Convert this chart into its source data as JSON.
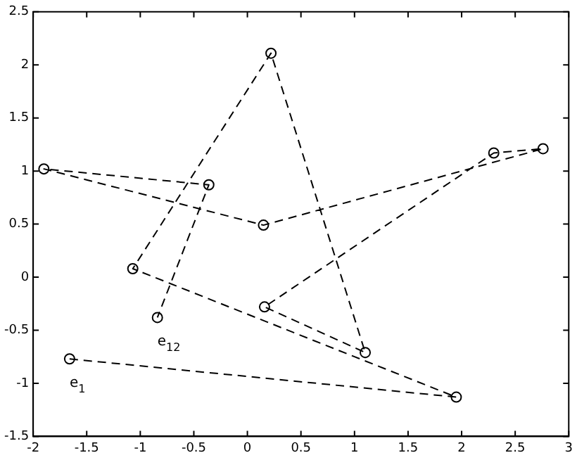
{
  "chart_data": {
    "type": "line",
    "marker": "circle",
    "line_style": "dashed",
    "grid": false,
    "legend": false,
    "xlim": [
      -2,
      3
    ],
    "xticks": [
      -2,
      -1.5,
      -1,
      -0.5,
      0,
      0.5,
      1,
      1.5,
      2,
      2.5,
      3
    ],
    "ylim": [
      -1.5,
      2.5
    ],
    "yticks": [
      -1.5,
      -1,
      -0.5,
      0,
      0.5,
      1,
      1.5,
      2,
      2.5
    ],
    "series": [
      {
        "color": "#000000",
        "x": [
          -1.66,
          1.95,
          -1.07,
          0.22,
          1.1,
          0.16,
          2.3,
          2.76,
          0.15,
          -1.9,
          -0.36,
          -0.84
        ],
        "values": [
          -0.77,
          -1.13,
          0.08,
          2.11,
          -0.71,
          -0.28,
          1.17,
          1.21,
          0.49,
          1.02,
          0.87,
          -0.38
        ]
      }
    ],
    "annotations": [
      {
        "text": "e$_{1}$",
        "x": -1.66,
        "y": -0.77
      },
      {
        "text": "e$_{12}$",
        "x": -0.84,
        "y": -0.38
      }
    ]
  }
}
